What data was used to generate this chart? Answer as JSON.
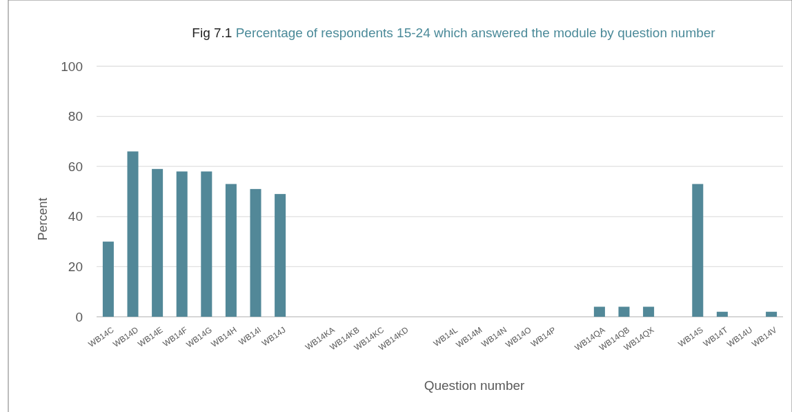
{
  "chart_data": {
    "type": "bar",
    "title": "Fig 7.1 Percentage of respondents 15-24 which answered the module by question number",
    "xlabel": "Question number",
    "ylabel": "Percent",
    "categories": [
      "WB14C",
      "WB14D",
      "WB14E",
      "WB14F",
      "WB14G",
      "WB14H",
      "WB14I",
      "WB14J",
      null,
      "WB14KA",
      "WB14KB",
      "WB14KC",
      "WB14KD",
      null,
      "WB14L",
      "WB14M",
      "WB14N",
      "WB14O",
      "WB14P",
      null,
      "WB14QA",
      "WB14QB",
      "WB14QX",
      null,
      "WB14S",
      "WB14T",
      "WB14U",
      "WB14V"
    ],
    "values": [
      30,
      66,
      59,
      58,
      58,
      53,
      51,
      49,
      null,
      0,
      0,
      0,
      0,
      null,
      0,
      0,
      0,
      0,
      0,
      null,
      4,
      4,
      4,
      null,
      53,
      2,
      0,
      2
    ],
    "color": "#528898",
    "ylim": [
      0,
      100
    ],
    "yticks": [
      0,
      20,
      40,
      60,
      80,
      100
    ],
    "grid": "y"
  }
}
